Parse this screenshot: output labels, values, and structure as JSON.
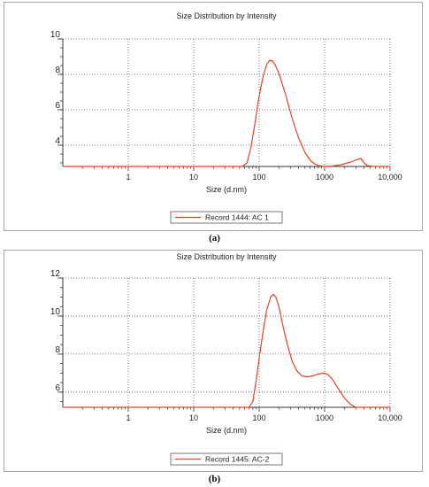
{
  "charts": [
    {
      "panel_label": "(a)"
    },
    {
      "panel_label": "(b)"
    }
  ],
  "chart_data": [
    {
      "type": "line",
      "title": "Size Distribution by Intensity",
      "xlabel": "Size (d.nm)",
      "ylabel": "",
      "x_scale": "log",
      "xlim": [
        0.1,
        10000
      ],
      "ylim": [
        2.8,
        10
      ],
      "x_ticks": [
        1,
        10,
        100,
        1000,
        10000
      ],
      "x_tick_labels": [
        "1",
        "10",
        "100",
        "1000",
        "10,000"
      ],
      "y_ticks": [
        4,
        6,
        8,
        10
      ],
      "y_tick_labels": [
        "4",
        "6",
        "8",
        "10"
      ],
      "grid": true,
      "legend_position": "bottom-center",
      "series": [
        {
          "name": "Record 1444: AC 1",
          "color": "#e8412a",
          "x": [
            0.1,
            1,
            10,
            40,
            55,
            65,
            75,
            85,
            95,
            105,
            115,
            130,
            145,
            160,
            175,
            195,
            220,
            260,
            320,
            400,
            500,
            600,
            700,
            800,
            1000,
            1300,
            1800,
            2500,
            3200,
            3600,
            4000,
            4500,
            5500,
            10000
          ],
          "y": [
            2.8,
            2.8,
            2.8,
            2.8,
            2.8,
            3.0,
            3.9,
            5.1,
            6.3,
            7.2,
            7.9,
            8.55,
            8.8,
            8.75,
            8.55,
            8.15,
            7.6,
            6.7,
            5.5,
            4.4,
            3.6,
            3.15,
            2.95,
            2.85,
            2.8,
            2.82,
            2.9,
            3.05,
            3.2,
            3.25,
            3.0,
            2.85,
            2.8,
            2.8
          ]
        }
      ]
    },
    {
      "type": "line",
      "title": "Size Distribution by Intensity",
      "xlabel": "Size (d.nm)",
      "ylabel": "",
      "x_scale": "log",
      "xlim": [
        0.1,
        10000
      ],
      "ylim": [
        5.2,
        12
      ],
      "x_ticks": [
        1,
        10,
        100,
        1000,
        10000
      ],
      "x_tick_labels": [
        "1",
        "10",
        "100",
        "1000",
        "10,000"
      ],
      "y_ticks": [
        6,
        8,
        10,
        12
      ],
      "y_tick_labels": [
        "6",
        "8",
        "10",
        "12"
      ],
      "grid": true,
      "legend_position": "bottom-center",
      "series": [
        {
          "name": "Record 1445: AC-2",
          "color": "#e8412a",
          "x": [
            0.1,
            1,
            10,
            50,
            70,
            80,
            90,
            100,
            115,
            130,
            150,
            165,
            180,
            200,
            230,
            270,
            320,
            380,
            450,
            550,
            650,
            800,
            950,
            1100,
            1300,
            1600,
            2000,
            2500,
            3000,
            10000
          ],
          "y": [
            5.2,
            5.2,
            5.2,
            5.2,
            5.2,
            5.5,
            6.6,
            7.8,
            9.2,
            10.3,
            11.0,
            11.15,
            11.0,
            10.5,
            9.5,
            8.5,
            7.6,
            7.1,
            6.85,
            6.8,
            6.85,
            6.95,
            7.0,
            6.95,
            6.7,
            6.2,
            5.7,
            5.35,
            5.2,
            5.2
          ]
        }
      ]
    }
  ]
}
